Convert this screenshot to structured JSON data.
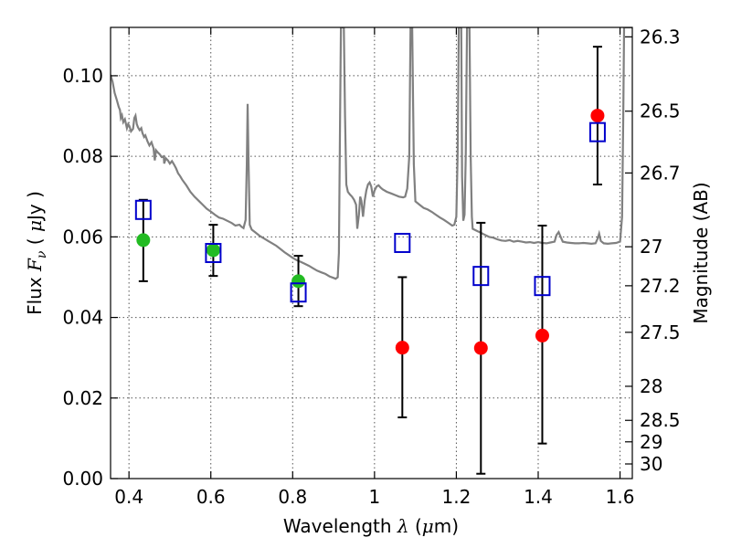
{
  "chart_data": {
    "type": "scatter",
    "xlabel": "Wavelength  λ (μm)",
    "ylabel": "Flux  F_ν (  μJy )",
    "ylabel_parts": {
      "lead": "Flux  ",
      "symbol": "F",
      "subscript": "ν",
      "paren_open": "  (  ",
      "mu": "μ",
      "unit": "Jy )"
    },
    "xlabel_parts": {
      "lead": "Wavelength  ",
      "lambda": "λ",
      "unit_open": " (",
      "mu": "μ",
      "unit_close": "m)"
    },
    "ylabel_right": "Magnitude (AB)",
    "xlim": [
      0.355,
      1.63
    ],
    "ylim": [
      0.0,
      0.112
    ],
    "x_ticks": [
      0.4,
      0.6,
      0.8,
      1.0,
      1.2,
      1.4,
      1.6
    ],
    "x_tick_labels": [
      "0.4",
      "0.6",
      "0.8",
      "1",
      "1.2",
      "1.4",
      "1.6"
    ],
    "y_ticks": [
      0.0,
      0.02,
      0.04,
      0.06,
      0.08,
      0.1
    ],
    "y_tick_labels": [
      "0.00",
      "0.02",
      "0.04",
      "0.06",
      "0.08",
      "0.10"
    ],
    "mag_ticks": [
      26.3,
      26.5,
      26.7,
      27.0,
      27.2,
      27.5,
      28.0,
      28.5,
      29.0,
      30.0
    ],
    "mag_tick_labels": [
      "26.3",
      "26.5",
      "26.7",
      "27",
      "27.2",
      "27.5",
      "28",
      "28.5",
      "29",
      "30"
    ],
    "grid": true,
    "colors": {
      "template": "#808080",
      "green_points": "#22bb22",
      "red_points": "#ff0000",
      "model_squares": "#0000cc",
      "errorbars": "#000000",
      "grid": "#555555"
    },
    "template_spectrum": [
      [
        0.355,
        0.1002
      ],
      [
        0.36,
        0.0985
      ],
      [
        0.365,
        0.0957
      ],
      [
        0.37,
        0.0941
      ],
      [
        0.375,
        0.0922
      ],
      [
        0.378,
        0.0915
      ],
      [
        0.38,
        0.0895
      ],
      [
        0.383,
        0.0902
      ],
      [
        0.386,
        0.0885
      ],
      [
        0.39,
        0.0892
      ],
      [
        0.395,
        0.087
      ],
      [
        0.398,
        0.088
      ],
      [
        0.401,
        0.0875
      ],
      [
        0.405,
        0.0862
      ],
      [
        0.41,
        0.0868
      ],
      [
        0.413,
        0.0895
      ],
      [
        0.416,
        0.0901
      ],
      [
        0.419,
        0.088
      ],
      [
        0.422,
        0.0872
      ],
      [
        0.426,
        0.0865
      ],
      [
        0.43,
        0.087
      ],
      [
        0.433,
        0.0858
      ],
      [
        0.437,
        0.0848
      ],
      [
        0.44,
        0.0852
      ],
      [
        0.445,
        0.0838
      ],
      [
        0.45,
        0.0827
      ],
      [
        0.455,
        0.0835
      ],
      [
        0.46,
        0.082
      ],
      [
        0.463,
        0.079
      ],
      [
        0.466,
        0.0815
      ],
      [
        0.47,
        0.081
      ],
      [
        0.475,
        0.0805
      ],
      [
        0.48,
        0.0798
      ],
      [
        0.485,
        0.08
      ],
      [
        0.486,
        0.0782
      ],
      [
        0.49,
        0.0795
      ],
      [
        0.495,
        0.079
      ],
      [
        0.5,
        0.0782
      ],
      [
        0.505,
        0.0788
      ],
      [
        0.51,
        0.078
      ],
      [
        0.515,
        0.077
      ],
      [
        0.52,
        0.0758
      ],
      [
        0.525,
        0.0751
      ],
      [
        0.53,
        0.0742
      ],
      [
        0.535,
        0.0735
      ],
      [
        0.54,
        0.0728
      ],
      [
        0.55,
        0.0712
      ],
      [
        0.56,
        0.07
      ],
      [
        0.57,
        0.069
      ],
      [
        0.58,
        0.068
      ],
      [
        0.59,
        0.067
      ],
      [
        0.6,
        0.0663
      ],
      [
        0.61,
        0.0655
      ],
      [
        0.62,
        0.0648
      ],
      [
        0.63,
        0.0645
      ],
      [
        0.64,
        0.064
      ],
      [
        0.65,
        0.0635
      ],
      [
        0.66,
        0.0628
      ],
      [
        0.67,
        0.063
      ],
      [
        0.675,
        0.0625
      ],
      [
        0.68,
        0.0622
      ],
      [
        0.685,
        0.0642
      ],
      [
        0.688,
        0.078
      ],
      [
        0.69,
        0.093
      ],
      [
        0.692,
        0.08
      ],
      [
        0.695,
        0.063
      ],
      [
        0.7,
        0.0618
      ],
      [
        0.71,
        0.061
      ],
      [
        0.72,
        0.0602
      ],
      [
        0.73,
        0.0596
      ],
      [
        0.74,
        0.059
      ],
      [
        0.75,
        0.0584
      ],
      [
        0.76,
        0.0578
      ],
      [
        0.77,
        0.057
      ],
      [
        0.78,
        0.0562
      ],
      [
        0.79,
        0.0555
      ],
      [
        0.8,
        0.0548
      ],
      [
        0.81,
        0.0542
      ],
      [
        0.82,
        0.0538
      ],
      [
        0.83,
        0.0533
      ],
      [
        0.84,
        0.0528
      ],
      [
        0.85,
        0.0522
      ],
      [
        0.86,
        0.0516
      ],
      [
        0.87,
        0.0512
      ],
      [
        0.88,
        0.0508
      ],
      [
        0.89,
        0.0502
      ],
      [
        0.9,
        0.0498
      ],
      [
        0.905,
        0.0496
      ],
      [
        0.91,
        0.05
      ],
      [
        0.913,
        0.056
      ],
      [
        0.916,
        0.09
      ],
      [
        0.918,
        0.112
      ],
      [
        0.925,
        0.112
      ],
      [
        0.928,
        0.09
      ],
      [
        0.931,
        0.073
      ],
      [
        0.935,
        0.0712
      ],
      [
        0.94,
        0.0705
      ],
      [
        0.945,
        0.07
      ],
      [
        0.95,
        0.0692
      ],
      [
        0.955,
        0.068
      ],
      [
        0.958,
        0.062
      ],
      [
        0.962,
        0.0655
      ],
      [
        0.965,
        0.07
      ],
      [
        0.968,
        0.069
      ],
      [
        0.972,
        0.065
      ],
      [
        0.976,
        0.069
      ],
      [
        0.98,
        0.0715
      ],
      [
        0.984,
        0.073
      ],
      [
        0.988,
        0.0735
      ],
      [
        0.992,
        0.0725
      ],
      [
        0.996,
        0.07
      ],
      [
        1.0,
        0.0715
      ],
      [
        1.005,
        0.0725
      ],
      [
        1.01,
        0.0728
      ],
      [
        1.015,
        0.0722
      ],
      [
        1.02,
        0.0718
      ],
      [
        1.03,
        0.0712
      ],
      [
        1.04,
        0.0708
      ],
      [
        1.05,
        0.0704
      ],
      [
        1.06,
        0.07
      ],
      [
        1.07,
        0.0698
      ],
      [
        1.075,
        0.07
      ],
      [
        1.08,
        0.072
      ],
      [
        1.085,
        0.08
      ],
      [
        1.088,
        0.112
      ],
      [
        1.092,
        0.112
      ],
      [
        1.096,
        0.078
      ],
      [
        1.1,
        0.0688
      ],
      [
        1.11,
        0.068
      ],
      [
        1.12,
        0.0672
      ],
      [
        1.13,
        0.0668
      ],
      [
        1.14,
        0.0662
      ],
      [
        1.15,
        0.0655
      ],
      [
        1.16,
        0.0648
      ],
      [
        1.17,
        0.0642
      ],
      [
        1.18,
        0.0635
      ],
      [
        1.19,
        0.0628
      ],
      [
        1.195,
        0.063
      ],
      [
        1.2,
        0.065
      ],
      [
        1.203,
        0.08
      ],
      [
        1.206,
        0.112
      ],
      [
        1.212,
        0.112
      ],
      [
        1.214,
        0.075
      ],
      [
        1.217,
        0.064
      ],
      [
        1.22,
        0.0655
      ],
      [
        1.223,
        0.08
      ],
      [
        1.226,
        0.112
      ],
      [
        1.232,
        0.112
      ],
      [
        1.235,
        0.08
      ],
      [
        1.238,
        0.065
      ],
      [
        1.24,
        0.062
      ],
      [
        1.25,
        0.0615
      ],
      [
        1.26,
        0.061
      ],
      [
        1.27,
        0.0605
      ],
      [
        1.28,
        0.06
      ],
      [
        1.29,
        0.0598
      ],
      [
        1.3,
        0.0594
      ],
      [
        1.31,
        0.0591
      ],
      [
        1.32,
        0.059
      ],
      [
        1.33,
        0.0592
      ],
      [
        1.34,
        0.0588
      ],
      [
        1.35,
        0.059
      ],
      [
        1.36,
        0.0588
      ],
      [
        1.37,
        0.0586
      ],
      [
        1.38,
        0.0587
      ],
      [
        1.39,
        0.0585
      ],
      [
        1.4,
        0.0587
      ],
      [
        1.41,
        0.0585
      ],
      [
        1.42,
        0.0584
      ],
      [
        1.43,
        0.0586
      ],
      [
        1.44,
        0.0588
      ],
      [
        1.445,
        0.0605
      ],
      [
        1.45,
        0.0612
      ],
      [
        1.455,
        0.06
      ],
      [
        1.46,
        0.0588
      ],
      [
        1.47,
        0.0586
      ],
      [
        1.48,
        0.0585
      ],
      [
        1.49,
        0.0584
      ],
      [
        1.5,
        0.0584
      ],
      [
        1.51,
        0.0585
      ],
      [
        1.52,
        0.0584
      ],
      [
        1.53,
        0.0583
      ],
      [
        1.54,
        0.0584
      ],
      [
        1.545,
        0.0595
      ],
      [
        1.549,
        0.0608
      ],
      [
        1.553,
        0.059
      ],
      [
        1.56,
        0.0584
      ],
      [
        1.57,
        0.0583
      ],
      [
        1.58,
        0.0584
      ],
      [
        1.59,
        0.0585
      ],
      [
        1.6,
        0.0588
      ],
      [
        1.605,
        0.065
      ],
      [
        1.608,
        0.09
      ],
      [
        1.61,
        0.112
      ],
      [
        1.63,
        0.112
      ]
    ],
    "observed_points": [
      {
        "x": 0.435,
        "y": 0.0592,
        "yerr_low": 0.049,
        "yerr_high": 0.0692,
        "color": "green"
      },
      {
        "x": 0.606,
        "y": 0.0567,
        "yerr_low": 0.0503,
        "yerr_high": 0.063,
        "color": "green"
      },
      {
        "x": 0.814,
        "y": 0.049,
        "yerr_low": 0.0428,
        "yerr_high": 0.0553,
        "color": "green"
      },
      {
        "x": 1.068,
        "y": 0.0325,
        "yerr_low": 0.0152,
        "yerr_high": 0.05,
        "color": "red"
      },
      {
        "x": 1.26,
        "y": 0.0324,
        "yerr_low": 0.0012,
        "yerr_high": 0.0635,
        "color": "red"
      },
      {
        "x": 1.41,
        "y": 0.0355,
        "yerr_low": 0.0087,
        "yerr_high": 0.0628,
        "color": "red"
      },
      {
        "x": 1.545,
        "y": 0.0901,
        "yerr_low": 0.073,
        "yerr_high": 0.1072,
        "color": "red"
      }
    ],
    "model_points": [
      {
        "x": 0.435,
        "y": 0.0667
      },
      {
        "x": 0.606,
        "y": 0.056
      },
      {
        "x": 0.814,
        "y": 0.0462
      },
      {
        "x": 1.068,
        "y": 0.0585
      },
      {
        "x": 1.26,
        "y": 0.0503
      },
      {
        "x": 1.41,
        "y": 0.0478
      },
      {
        "x": 1.545,
        "y": 0.086
      }
    ]
  }
}
